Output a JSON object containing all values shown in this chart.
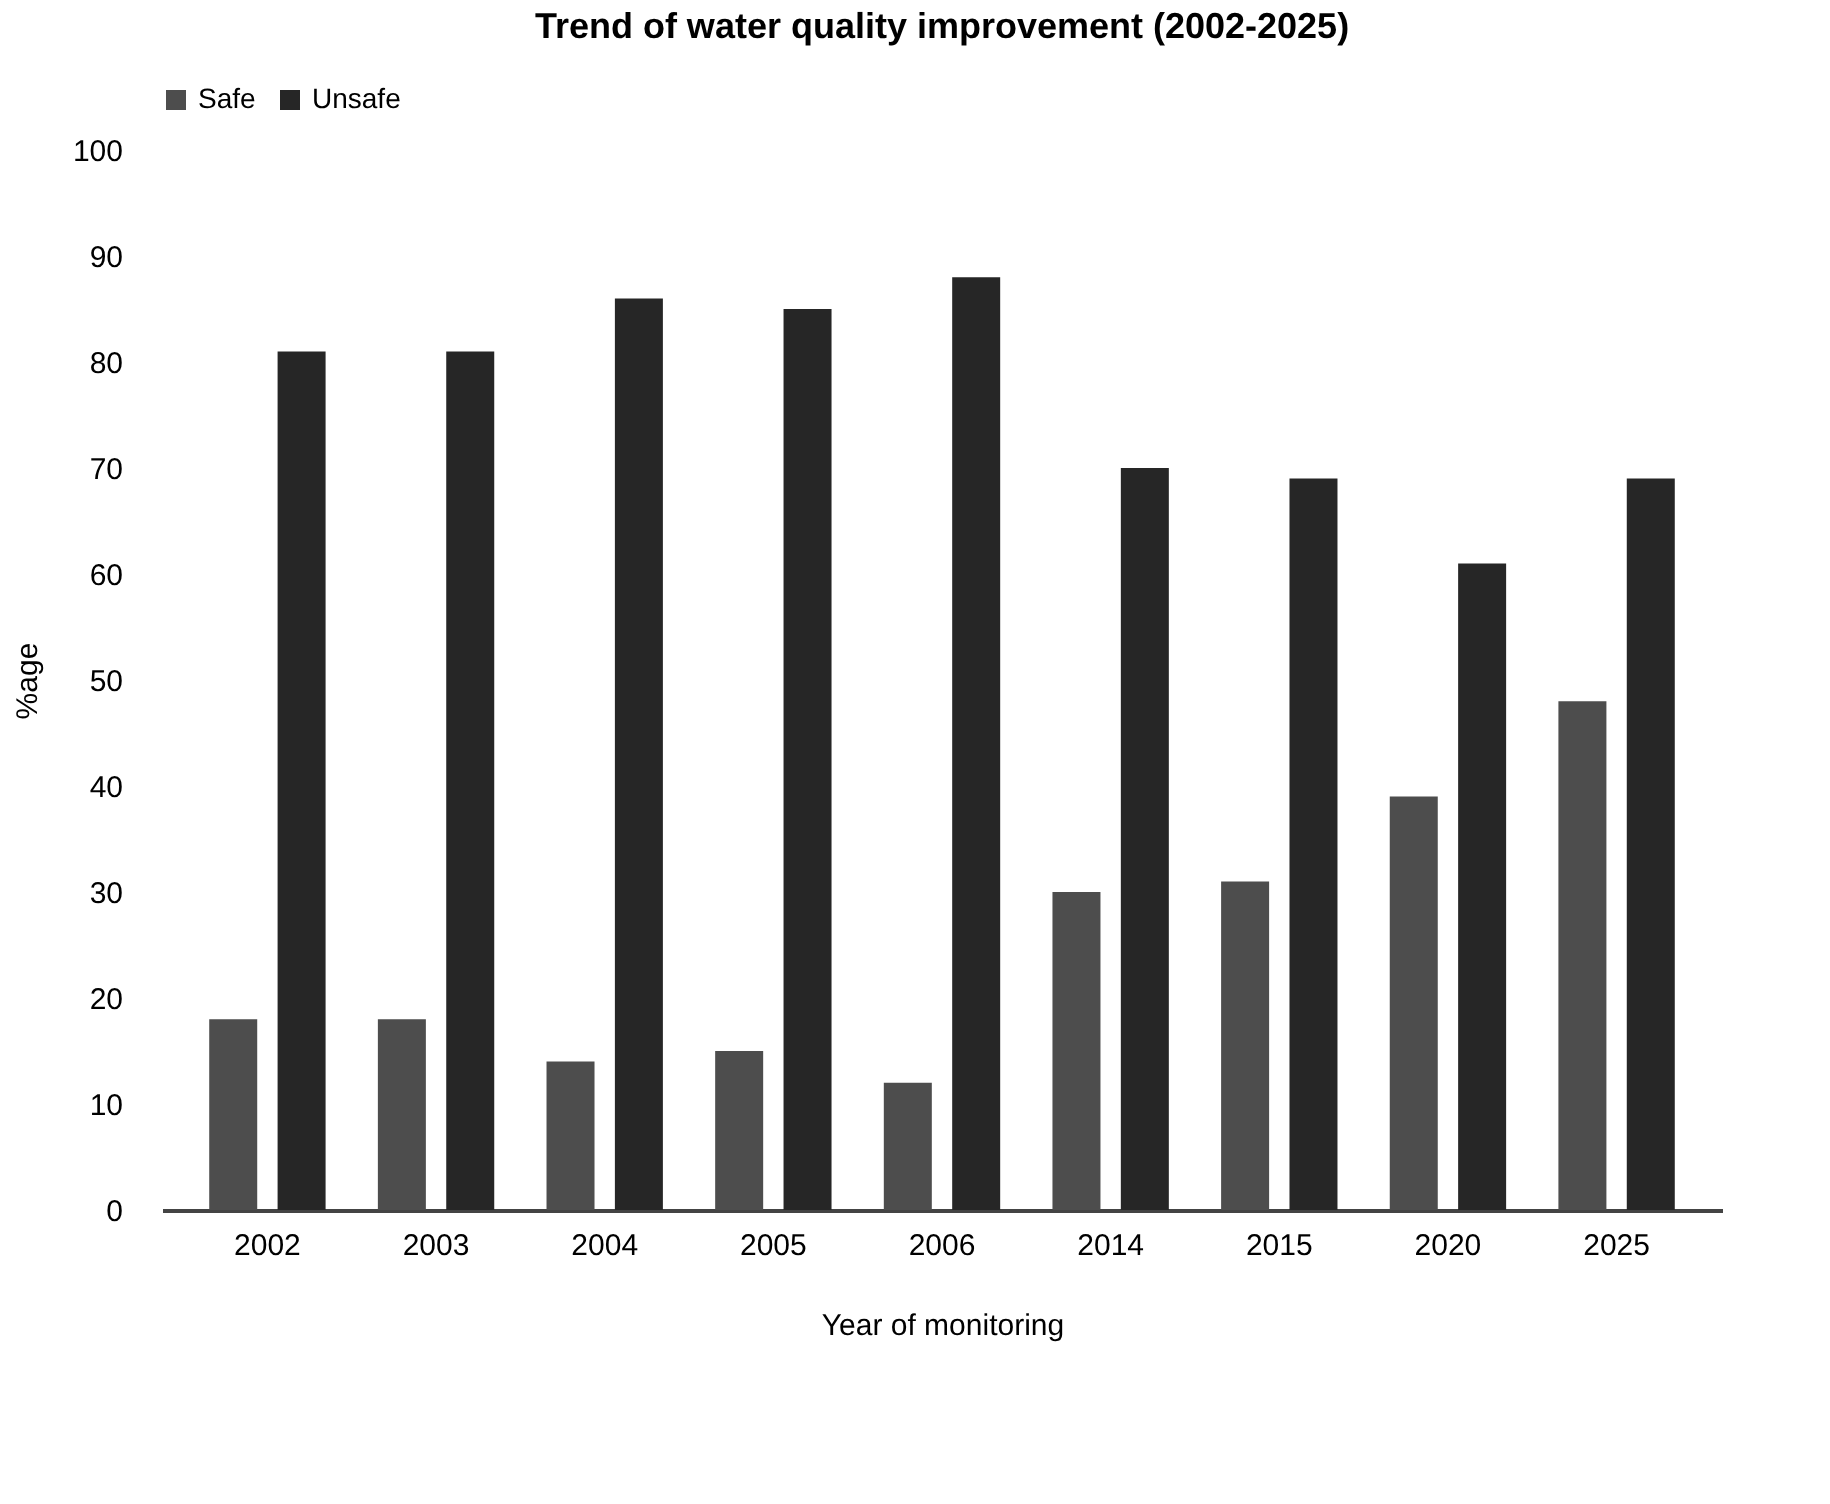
{
  "chart_data": {
    "type": "bar",
    "title": "Trend of water quality improvement (2002-2025)",
    "xlabel": "Year of monitoring",
    "ylabel": "%age",
    "categories": [
      "2002",
      "2003",
      "2004",
      "2005",
      "2006",
      "2014",
      "2015",
      "2020",
      "2025"
    ],
    "series": [
      {
        "name": "Safe",
        "color": "#4d4d4d",
        "values": [
          18,
          18,
          14,
          15,
          12,
          30,
          31,
          39,
          48
        ]
      },
      {
        "name": "Unsafe",
        "color": "#262626",
        "values": [
          81,
          81,
          86,
          85,
          88,
          70,
          69,
          61,
          69
        ]
      }
    ],
    "ylim": [
      0,
      100
    ],
    "yticks": [
      0,
      10,
      20,
      30,
      40,
      50,
      60,
      70,
      80,
      90,
      100
    ],
    "grid": false,
    "legend": "top"
  }
}
